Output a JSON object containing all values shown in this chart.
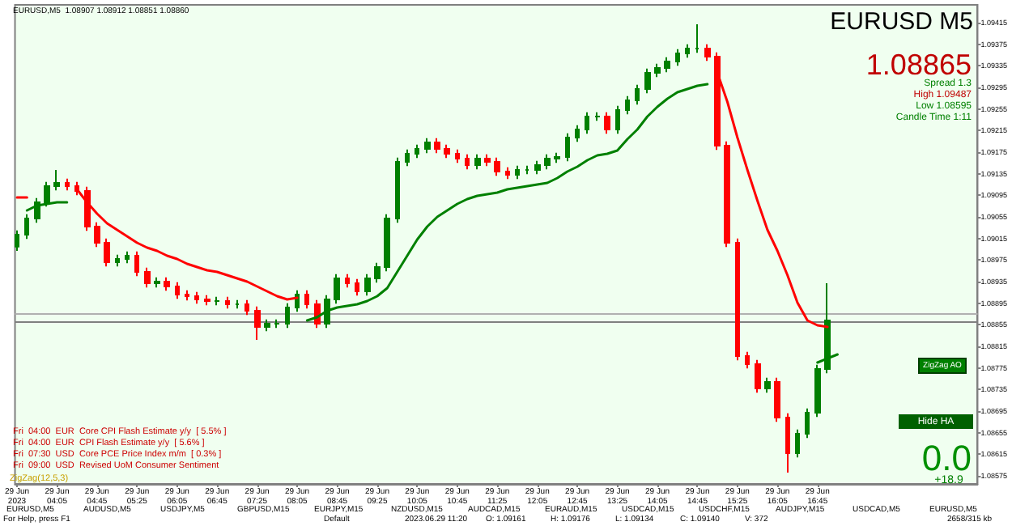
{
  "chart_data": {
    "type": "candlestick",
    "title": "EURUSD M5",
    "x": [
      "2023-06-29T03:25",
      "2023-06-29T03:35",
      "2023-06-29T03:45",
      "2023-06-29T03:55",
      "2023-06-29T04:05",
      "2023-06-29T04:15",
      "2023-06-29T04:25",
      "2023-06-29T04:35",
      "2023-06-29T04:45",
      "2023-06-29T04:55",
      "2023-06-29T05:05",
      "2023-06-29T05:15",
      "2023-06-29T05:25",
      "2023-06-29T05:35",
      "2023-06-29T05:45",
      "2023-06-29T05:55",
      "2023-06-29T06:05",
      "2023-06-29T06:15",
      "2023-06-29T06:25",
      "2023-06-29T06:35",
      "2023-06-29T06:45",
      "2023-06-29T06:55",
      "2023-06-29T07:05",
      "2023-06-29T07:15",
      "2023-06-29T07:25",
      "2023-06-29T07:35",
      "2023-06-29T07:45",
      "2023-06-29T07:55",
      "2023-06-29T08:05",
      "2023-06-29T08:15",
      "2023-06-29T08:25",
      "2023-06-29T08:35",
      "2023-06-29T08:45",
      "2023-06-29T08:55",
      "2023-06-29T09:05",
      "2023-06-29T09:15",
      "2023-06-29T09:25",
      "2023-06-29T09:35",
      "2023-06-29T09:45",
      "2023-06-29T09:55",
      "2023-06-29T10:05",
      "2023-06-29T10:15",
      "2023-06-29T10:25",
      "2023-06-29T10:35",
      "2023-06-29T10:45",
      "2023-06-29T10:55",
      "2023-06-29T11:05",
      "2023-06-29T11:15",
      "2023-06-29T11:25",
      "2023-06-29T11:35",
      "2023-06-29T11:45",
      "2023-06-29T11:55",
      "2023-06-29T12:05",
      "2023-06-29T12:15",
      "2023-06-29T12:25",
      "2023-06-29T12:35",
      "2023-06-29T12:45",
      "2023-06-29T12:55",
      "2023-06-29T13:05",
      "2023-06-29T13:15",
      "2023-06-29T13:25",
      "2023-06-29T13:35",
      "2023-06-29T13:45",
      "2023-06-29T13:55",
      "2023-06-29T14:05",
      "2023-06-29T14:15",
      "2023-06-29T14:25",
      "2023-06-29T14:35",
      "2023-06-29T14:45",
      "2023-06-29T14:55",
      "2023-06-29T15:05",
      "2023-06-29T15:15",
      "2023-06-29T15:25",
      "2023-06-29T15:35",
      "2023-06-29T15:45",
      "2023-06-29T15:55",
      "2023-06-29T16:05",
      "2023-06-29T16:15",
      "2023-06-29T16:25",
      "2023-06-29T16:35",
      "2023-06-29T16:45",
      "2023-06-29T16:55"
    ],
    "ohlc": [
      [
        1.09,
        1.0903,
        1.08992,
        1.09022
      ],
      [
        1.09022,
        1.0906,
        1.09014,
        1.09052
      ],
      [
        1.09052,
        1.0909,
        1.09044,
        1.09082
      ],
      [
        1.09082,
        1.0912,
        1.09074,
        1.09112
      ],
      [
        1.09112,
        1.09142,
        1.09104,
        1.09118
      ],
      [
        1.09118,
        1.09126,
        1.09104,
        1.09112
      ],
      [
        1.09112,
        1.0912,
        1.09095,
        1.09103
      ],
      [
        1.09103,
        1.09111,
        1.09029,
        1.09037
      ],
      [
        1.09037,
        1.09045,
        1.08999,
        1.09007
      ],
      [
        1.09007,
        1.09015,
        1.08963,
        1.08971
      ],
      [
        1.08971,
        1.08985,
        1.08963,
        1.08977
      ],
      [
        1.08977,
        1.08991,
        1.08969,
        1.08983
      ],
      [
        1.08983,
        1.08991,
        1.08945,
        1.08953
      ],
      [
        1.08953,
        1.08961,
        1.08924,
        1.08932
      ],
      [
        1.08932,
        1.08943,
        1.08924,
        1.08935
      ],
      [
        1.08935,
        1.08943,
        1.08918,
        1.08926
      ],
      [
        1.08926,
        1.08934,
        1.08903,
        1.08911
      ],
      [
        1.08911,
        1.08919,
        1.089,
        1.08908
      ],
      [
        1.08908,
        1.08916,
        1.08894,
        1.08902
      ],
      [
        1.08902,
        1.0891,
        1.08891,
        1.08899
      ],
      [
        1.08899,
        1.08907,
        1.08891,
        1.08899
      ],
      [
        1.08899,
        1.08907,
        1.08885,
        1.08893
      ],
      [
        1.08893,
        1.08901,
        1.08885,
        1.08893
      ],
      [
        1.08893,
        1.08901,
        1.08873,
        1.08881
      ],
      [
        1.08881,
        1.08889,
        1.08827,
        1.08851
      ],
      [
        1.08851,
        1.08865,
        1.08843,
        1.08857
      ],
      [
        1.08857,
        1.08865,
        1.08849,
        1.08857
      ],
      [
        1.08857,
        1.08895,
        1.08849,
        1.08887
      ],
      [
        1.08887,
        1.08919,
        1.08879,
        1.08911
      ],
      [
        1.08911,
        1.08919,
        1.08885,
        1.08893
      ],
      [
        1.08893,
        1.08901,
        1.08849,
        1.08857
      ],
      [
        1.08857,
        1.0891,
        1.08849,
        1.08902
      ],
      [
        1.08902,
        1.08949,
        1.08894,
        1.08941
      ],
      [
        1.08941,
        1.08949,
        1.08924,
        1.08932
      ],
      [
        1.08932,
        1.0894,
        1.08909,
        1.08917
      ],
      [
        1.08917,
        1.08949,
        1.08909,
        1.08941
      ],
      [
        1.08941,
        1.0897,
        1.08933,
        1.08962
      ],
      [
        1.08962,
        1.0906,
        1.08954,
        1.09052
      ],
      [
        1.09052,
        1.09165,
        1.09044,
        1.09157
      ],
      [
        1.09157,
        1.0918,
        1.09149,
        1.09172
      ],
      [
        1.09172,
        1.09189,
        1.09164,
        1.09181
      ],
      [
        1.09181,
        1.09201,
        1.09173,
        1.09193
      ],
      [
        1.09193,
        1.09201,
        1.09173,
        1.09181
      ],
      [
        1.09181,
        1.09189,
        1.09164,
        1.09172
      ],
      [
        1.09172,
        1.0918,
        1.09155,
        1.09163
      ],
      [
        1.09163,
        1.09171,
        1.09143,
        1.09151
      ],
      [
        1.09151,
        1.09171,
        1.09143,
        1.09163
      ],
      [
        1.09163,
        1.09171,
        1.09149,
        1.09157
      ],
      [
        1.09157,
        1.09165,
        1.09131,
        1.09139
      ],
      [
        1.09139,
        1.09147,
        1.09125,
        1.09133
      ],
      [
        1.09133,
        1.0915,
        1.09125,
        1.09142
      ],
      [
        1.09142,
        1.0915,
        1.09134,
        1.09142
      ],
      [
        1.09142,
        1.09159,
        1.09134,
        1.09151
      ],
      [
        1.09151,
        1.09171,
        1.09143,
        1.09163
      ],
      [
        1.09163,
        1.09174,
        1.09155,
        1.09166
      ],
      [
        1.09166,
        1.0921,
        1.09158,
        1.09202
      ],
      [
        1.09202,
        1.09225,
        1.09194,
        1.09217
      ],
      [
        1.09217,
        1.09249,
        1.09209,
        1.09241
      ],
      [
        1.09241,
        1.09249,
        1.09233,
        1.09241
      ],
      [
        1.09241,
        1.09249,
        1.09209,
        1.09217
      ],
      [
        1.09217,
        1.09261,
        1.09209,
        1.09253
      ],
      [
        1.09253,
        1.09279,
        1.09245,
        1.09271
      ],
      [
        1.09271,
        1.093,
        1.09263,
        1.09292
      ],
      [
        1.09292,
        1.0933,
        1.09284,
        1.09322
      ],
      [
        1.09322,
        1.09339,
        1.09314,
        1.09331
      ],
      [
        1.09331,
        1.09351,
        1.09323,
        1.09343
      ],
      [
        1.09343,
        1.09366,
        1.09335,
        1.09358
      ],
      [
        1.09358,
        1.09375,
        1.0935,
        1.09367
      ],
      [
        1.09367,
        1.09412,
        1.09359,
        1.09367
      ],
      [
        1.09367,
        1.09375,
        1.09344,
        1.09352
      ],
      [
        1.09352,
        1.0936,
        1.09179,
        1.09187
      ],
      [
        1.09187,
        1.09195,
        1.08999,
        1.09007
      ],
      [
        1.09007,
        1.09015,
        1.08789,
        1.08797
      ],
      [
        1.08797,
        1.08805,
        1.08774,
        1.08782
      ],
      [
        1.08782,
        1.0879,
        1.08729,
        1.08737
      ],
      [
        1.08737,
        1.08757,
        1.08729,
        1.08749
      ],
      [
        1.08749,
        1.08757,
        1.08675,
        1.08683
      ],
      [
        1.08683,
        1.08691,
        1.08581,
        1.08617
      ],
      [
        1.08617,
        1.08661,
        1.08609,
        1.08653
      ],
      [
        1.08653,
        1.087,
        1.08645,
        1.08692
      ],
      [
        1.08692,
        1.08781,
        1.08684,
        1.08773
      ],
      [
        1.08773,
        1.08932,
        1.08765,
        1.08863
      ]
    ],
    "series": [
      {
        "type": "line",
        "color": "#ff0000",
        "values": [
          1.09091,
          1.09091,
          null,
          null,
          null,
          null,
          1.09106,
          1.09082,
          1.09061,
          1.09043,
          1.09031,
          1.09019,
          1.09007,
          1.08998,
          1.08992,
          1.08983,
          1.08977,
          1.08968,
          1.08962,
          1.08956,
          1.08953,
          1.08947,
          1.08941,
          1.08935,
          1.08926,
          1.08917,
          1.08908,
          1.08902,
          1.08905,
          null,
          null,
          null,
          null,
          null,
          null,
          null,
          null,
          null,
          null,
          null,
          null,
          null,
          null,
          null,
          null,
          null,
          null,
          null,
          null,
          null,
          null,
          null,
          null,
          null,
          null,
          null,
          null,
          null,
          null,
          null,
          null,
          null,
          null,
          null,
          null,
          null,
          null,
          null,
          null,
          null,
          1.09322,
          1.09268,
          1.09202,
          1.09142,
          1.09085,
          1.09031,
          1.08992,
          1.08947,
          1.08896,
          1.08863,
          1.08854,
          1.08851
        ]
      },
      {
        "type": "line",
        "color": "#008000",
        "values": [
          null,
          1.09067,
          1.09076,
          1.09079,
          1.09082,
          1.09082,
          null,
          null,
          null,
          null,
          null,
          null,
          null,
          null,
          null,
          null,
          null,
          null,
          null,
          null,
          null,
          null,
          null,
          null,
          null,
          null,
          null,
          null,
          null,
          1.08863,
          1.08869,
          1.08881,
          1.08887,
          1.0889,
          1.08893,
          1.08899,
          1.08908,
          1.08923,
          1.08953,
          1.08983,
          1.09013,
          1.09037,
          1.09055,
          1.09067,
          1.09079,
          1.09088,
          1.09094,
          1.09097,
          1.091,
          1.09106,
          1.09109,
          1.09112,
          1.09115,
          1.09118,
          1.09127,
          1.09139,
          1.09148,
          1.0916,
          1.09169,
          1.09172,
          1.09178,
          1.09199,
          1.09217,
          1.09241,
          1.09259,
          1.09274,
          1.09286,
          1.09292,
          1.09298,
          1.09301,
          null,
          null,
          null,
          null,
          null,
          null,
          null,
          null,
          null,
          null,
          null,
          null
        ]
      },
      {
        "type": "line",
        "color": "#008000",
        "x": [
          "2023-06-29T16:45",
          "2023-06-29T17:05"
        ],
        "values": [
          1.08785,
          1.088
        ]
      }
    ],
    "marker": "none",
    "ref_lines": [
      {
        "axis": "y",
        "value": 1.08875,
        "color": "#b0b0b0"
      },
      {
        "axis": "y",
        "value": 1.0886,
        "color": "#808080"
      }
    ],
    "xlim": [
      "2023-06-29T03:23",
      "2023-06-29T19:25"
    ],
    "xticks": [
      {
        "value": "2023-06-29T03:25",
        "label": "29 Jun 2023"
      },
      {
        "value": "2023-06-29T04:05",
        "label": "29 Jun 04:05"
      },
      {
        "value": "2023-06-29T04:45",
        "label": "29 Jun 04:45"
      },
      {
        "value": "2023-06-29T05:25",
        "label": "29 Jun 05:25"
      },
      {
        "value": "2023-06-29T06:05",
        "label": "29 Jun 06:05"
      },
      {
        "value": "2023-06-29T06:45",
        "label": "29 Jun 06:45"
      },
      {
        "value": "2023-06-29T07:25",
        "label": "29 Jun 07:25"
      },
      {
        "value": "2023-06-29T08:05",
        "label": "29 Jun 08:05"
      },
      {
        "value": "2023-06-29T08:45",
        "label": "29 Jun 08:45"
      },
      {
        "value": "2023-06-29T09:25",
        "label": "29 Jun 09:25"
      },
      {
        "value": "2023-06-29T10:05",
        "label": "29 Jun 10:05"
      },
      {
        "value": "2023-06-29T10:45",
        "label": "29 Jun 10:45"
      },
      {
        "value": "2023-06-29T11:25",
        "label": "29 Jun 11:25"
      },
      {
        "value": "2023-06-29T12:05",
        "label": "29 Jun 12:05"
      },
      {
        "value": "2023-06-29T12:45",
        "label": "29 Jun 12:45"
      },
      {
        "value": "2023-06-29T13:25",
        "label": "29 Jun 13:25"
      },
      {
        "value": "2023-06-29T14:05",
        "label": "29 Jun 14:05"
      },
      {
        "value": "2023-06-29T14:45",
        "label": "29 Jun 14:45"
      },
      {
        "value": "2023-06-29T15:25",
        "label": "29 Jun 15:25"
      },
      {
        "value": "2023-06-29T16:05",
        "label": "29 Jun 16:05"
      },
      {
        "value": "2023-06-29T16:45",
        "label": "29 Jun 16:45"
      }
    ],
    "ylim": [
      1.0856,
      1.09448
    ],
    "yticks": [
      1.08575,
      1.08615,
      1.08655,
      1.08695,
      1.08735,
      1.08775,
      1.08815,
      1.08855,
      1.08895,
      1.08935,
      1.08975,
      1.09015,
      1.09055,
      1.09095,
      1.09135,
      1.09175,
      1.09215,
      1.09255,
      1.09295,
      1.09335,
      1.09375,
      1.09415
    ],
    "annotations": [
      "EURUSD,M5  1.08907 1.08912 1.08851 1.08860",
      "1.08865",
      "Spread 1.3",
      "High 1.09487",
      "Low 1.08595",
      "Candle Time 1:11",
      "ZigZag AO",
      "Hide HA",
      "0.0",
      "+18.9",
      "Fri  04:00  EUR  Core CPI Flash Estimate y/y  [ 5.5% ]",
      "Fri  04:00  EUR  CPI Flash Estimate y/y  [ 5.6% ]",
      "Fri  07:30  USD  Core PCE Price Index m/m  [ 0.3% ]",
      "Fri  09:00  USD  Revised UoM Consumer Sentiment",
      "ZigZag(12,5,3)",
      "For Help, press F1",
      "Default",
      "2023.06.29 11:20",
      "O: 1.09161",
      "H: 1.09176",
      "L: 1.09134",
      "C: 1.09140",
      "V: 372",
      "2658/315 kb",
      "EURUSD,M5",
      "AUDUSD,M5",
      "USDJPY,M5",
      "GBPUSD,M15",
      "EURJPY,M15",
      "NZDUSD,M15",
      "AUDCAD,M15",
      "EURAUD,M15",
      "USDCAD,M15",
      "USDCHF,M15",
      "AUDJPY,M15",
      "USDCAD,M5",
      "EURUSD,M5"
    ]
  }
}
